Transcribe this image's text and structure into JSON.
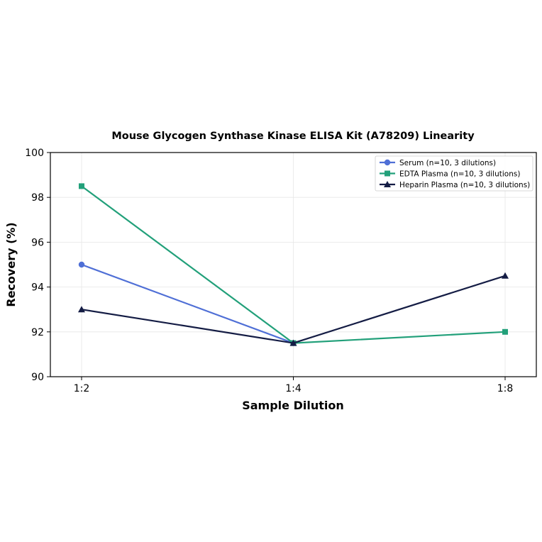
{
  "chart_data": {
    "type": "line",
    "title": "Mouse Glycogen Synthase Kinase ELISA Kit (A78209) Linearity",
    "xlabel": "Sample Dilution",
    "ylabel": "Recovery (%)",
    "categories": [
      "1:2",
      "1:4",
      "1:8"
    ],
    "ylim": [
      90,
      100
    ],
    "yticks": [
      90,
      92,
      94,
      96,
      98,
      100
    ],
    "grid": true,
    "legend_position": "top-right",
    "series": [
      {
        "name": "Serum (n=10, 3 dilutions)",
        "values": [
          95.0,
          91.5,
          null
        ],
        "color": "#4f6fd6",
        "marker": "circle"
      },
      {
        "name": "EDTA Plasma (n=10, 3 dilutions)",
        "values": [
          98.5,
          91.5,
          92.0
        ],
        "color": "#22a07a",
        "marker": "square"
      },
      {
        "name": "Heparin Plasma (n=10, 3 dilutions)",
        "values": [
          93.0,
          91.5,
          94.5
        ],
        "color": "#141c44",
        "marker": "triangle"
      }
    ]
  }
}
